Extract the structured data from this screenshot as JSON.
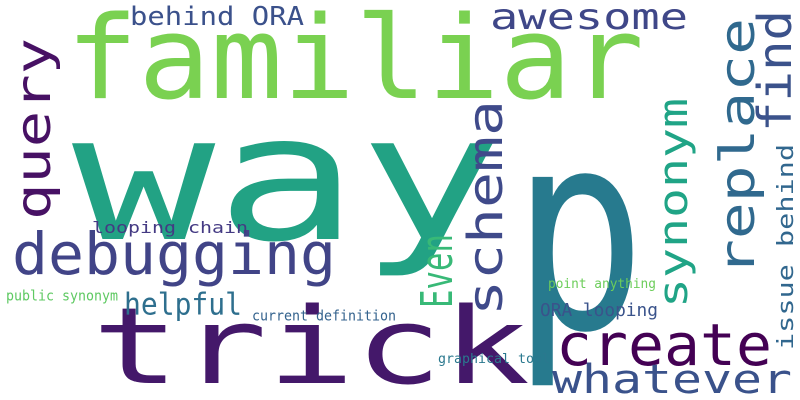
{
  "word_cloud": {
    "words": [
      {
        "text": "p",
        "color": "#277a8e",
        "orientation": "horizontal"
      },
      {
        "text": "way",
        "color": "#22a284",
        "orientation": "horizontal"
      },
      {
        "text": "familiar",
        "color": "#7ad151",
        "orientation": "horizontal"
      },
      {
        "text": "trick",
        "color": "#44186a",
        "orientation": "horizontal"
      },
      {
        "text": "debugging",
        "color": "#414487",
        "orientation": "horizontal"
      },
      {
        "text": "create",
        "color": "#440154",
        "orientation": "horizontal"
      },
      {
        "text": "whatever",
        "color": "#3a528b",
        "orientation": "horizontal"
      },
      {
        "text": "schema",
        "color": "#3f4a8a",
        "orientation": "vertical"
      },
      {
        "text": "replace",
        "color": "#30698e",
        "orientation": "vertical"
      },
      {
        "text": "query",
        "color": "#471164",
        "orientation": "vertical"
      },
      {
        "text": "awesome",
        "color": "#3f4788",
        "orientation": "horizontal"
      },
      {
        "text": "find",
        "color": "#3b528b",
        "orientation": "vertical"
      },
      {
        "text": "Even",
        "color": "#38b977",
        "orientation": "vertical"
      },
      {
        "text": "synonym",
        "color": "#20a486",
        "orientation": "vertical"
      },
      {
        "text": "behind ORA",
        "color": "#3b518b",
        "orientation": "horizontal"
      },
      {
        "text": "helpful",
        "color": "#2e6f8e",
        "orientation": "horizontal"
      },
      {
        "text": "issue behind",
        "color": "#31678e",
        "orientation": "vertical"
      },
      {
        "text": "ORA looping",
        "color": "#3a538b",
        "orientation": "horizontal"
      },
      {
        "text": "looping chain",
        "color": "#443a83",
        "orientation": "horizontal"
      },
      {
        "text": "current definition",
        "color": "#33628d",
        "orientation": "horizontal"
      },
      {
        "text": "graphical tool",
        "color": "#2a788e",
        "orientation": "horizontal"
      },
      {
        "text": "point anything",
        "color": "#6ccd5a",
        "orientation": "horizontal"
      },
      {
        "text": "public synonym",
        "color": "#5ec962",
        "orientation": "horizontal"
      }
    ]
  }
}
